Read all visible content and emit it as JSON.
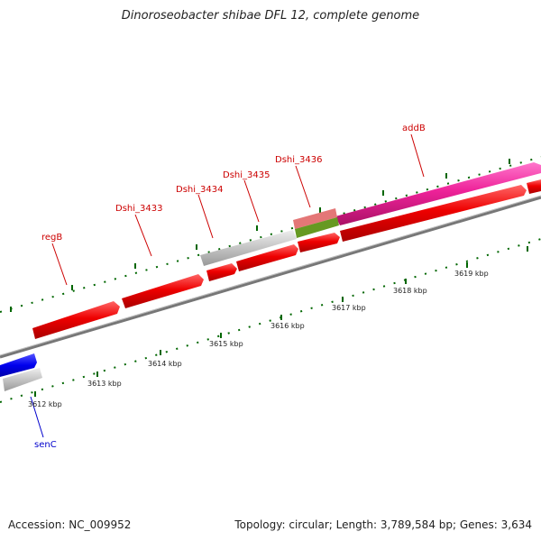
{
  "title": "Dinoroseobacter shibae DFL 12, complete genome",
  "accession": "Accession: NC_009952",
  "summary": "Topology: circular; Length: 3,789,584 bp; Genes: 3,634",
  "scale_labels": [
    "3612 kbp",
    "3613 kbp",
    "3614 kbp",
    "3615 kbp",
    "3616 kbp",
    "3617 kbp",
    "3618 kbp",
    "3619 kbp"
  ],
  "gene_labels": {
    "regB": "regB",
    "dshi3433": "Dshi_3433",
    "dshi3434": "Dshi_3434",
    "dshi3435": "Dshi_3435",
    "dshi3436": "Dshi_3436",
    "addB": "addB",
    "senC": "senC"
  },
  "colors": {
    "forward_cds": "#e00000",
    "addB": "#ee1199",
    "rna": "#bbbbbb",
    "reverse_cds": "#0000ee",
    "tick": "#006600",
    "backbone": "#777777",
    "label_red": "#cc0000",
    "label_blue": "#0000cc"
  }
}
